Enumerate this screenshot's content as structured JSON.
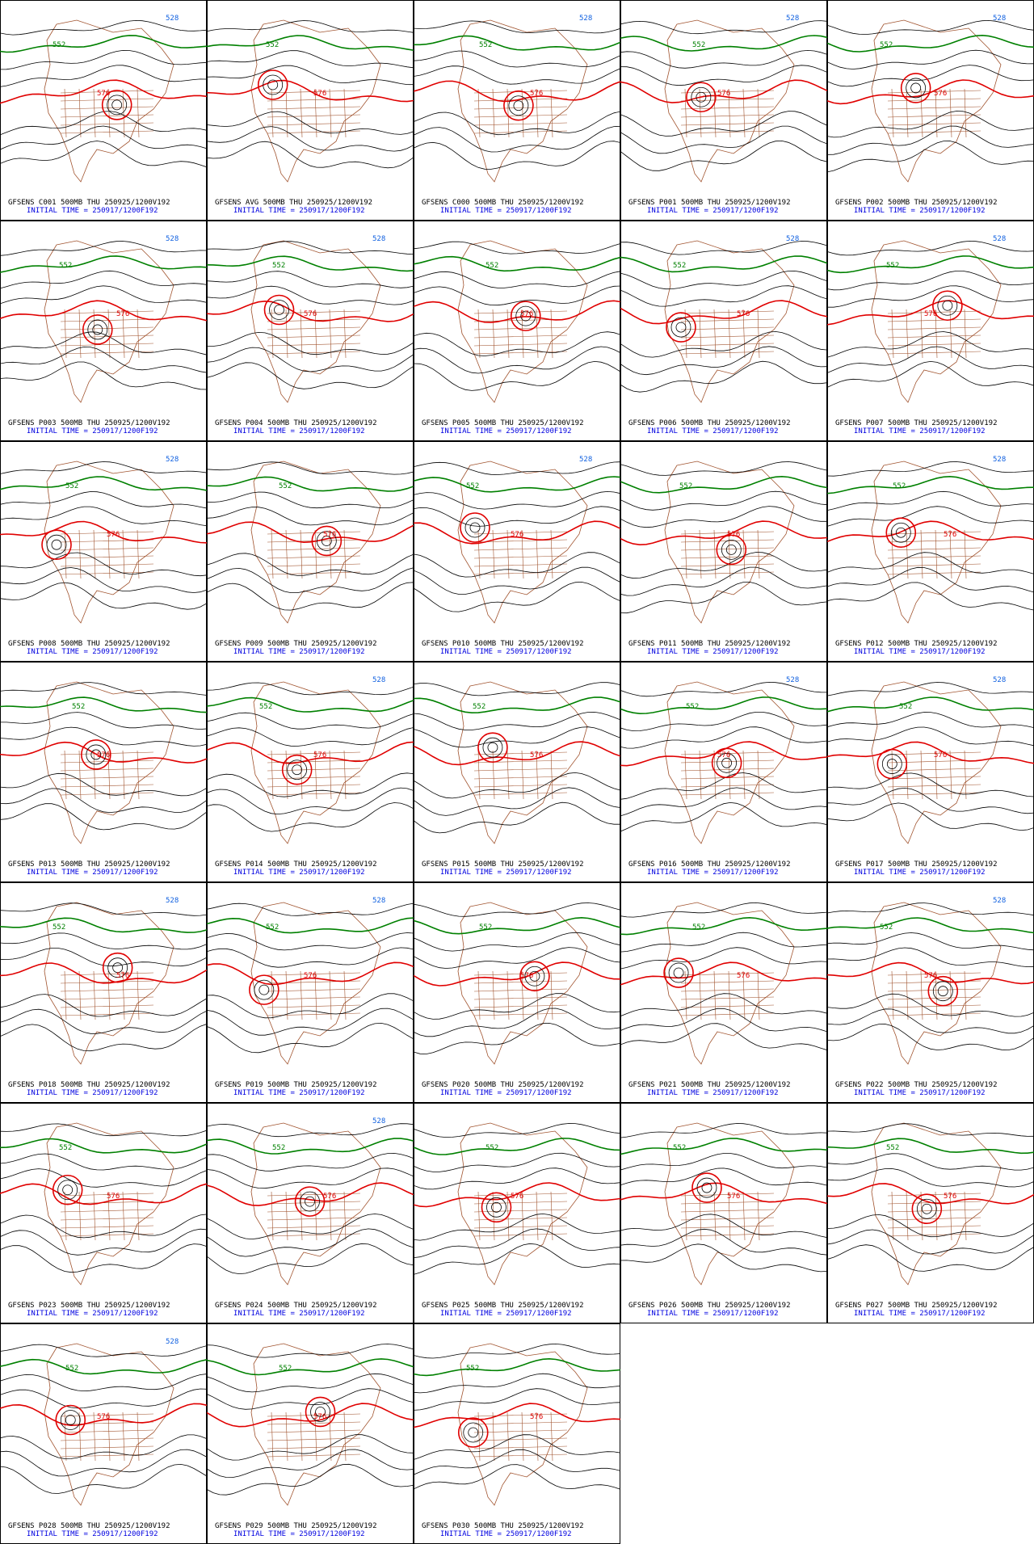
{
  "panels": [
    {
      "line1": "GFSENS C001 500MB THU 250925/1200V192",
      "line2": "INITIAL TIME = 250917/1200F192",
      "contour_labels": [
        {
          "text": "552",
          "color": "#008000"
        },
        {
          "text": "576",
          "color": "#e00000"
        },
        {
          "text": "528",
          "color": "#1060e0"
        }
      ]
    },
    {
      "line1": "GFSENS AVG 500MB THU 250925/1200V192",
      "line2": "INITIAL TIME = 250917/1200F192",
      "contour_labels": [
        {
          "text": "552",
          "color": "#008000"
        },
        {
          "text": "576",
          "color": "#e00000"
        }
      ]
    },
    {
      "line1": "GFSENS C000 500MB THU 250925/1200V192",
      "line2": "INITIAL TIME = 250917/1200F192",
      "contour_labels": [
        {
          "text": "552",
          "color": "#008000"
        },
        {
          "text": "576",
          "color": "#e00000"
        },
        {
          "text": "528",
          "color": "#1060e0"
        }
      ]
    },
    {
      "line1": "GFSENS P001 500MB THU 250925/1200V192",
      "line2": "INITIAL TIME = 250917/1200F192",
      "contour_labels": [
        {
          "text": "552",
          "color": "#008000"
        },
        {
          "text": "576",
          "color": "#e00000"
        },
        {
          "text": "528",
          "color": "#1060e0"
        }
      ]
    },
    {
      "line1": "GFSENS P002 500MB THU 250925/1200V192",
      "line2": "INITIAL TIME = 250917/1200F192",
      "contour_labels": [
        {
          "text": "552",
          "color": "#008000"
        },
        {
          "text": "576",
          "color": "#e00000"
        },
        {
          "text": "528",
          "color": "#1060e0"
        }
      ]
    },
    {
      "line1": "GFSENS P003 500MB THU 250925/1200V192",
      "line2": "INITIAL TIME = 250917/1200F192",
      "contour_labels": [
        {
          "text": "552",
          "color": "#008000"
        },
        {
          "text": "576",
          "color": "#e00000"
        },
        {
          "text": "528",
          "color": "#1060e0"
        }
      ]
    },
    {
      "line1": "GFSENS P004 500MB THU 250925/1200V192",
      "line2": "INITIAL TIME = 250917/1200F192",
      "contour_labels": [
        {
          "text": "552",
          "color": "#008000"
        },
        {
          "text": "576",
          "color": "#e00000"
        },
        {
          "text": "528",
          "color": "#1060e0"
        }
      ]
    },
    {
      "line1": "GFSENS P005 500MB THU 250925/1200V192",
      "line2": "INITIAL TIME = 250917/1200F192",
      "contour_labels": [
        {
          "text": "552",
          "color": "#008000"
        },
        {
          "text": "576",
          "color": "#e00000"
        }
      ]
    },
    {
      "line1": "GFSENS P006 500MB THU 250925/1200V192",
      "line2": "INITIAL TIME = 250917/1200F192",
      "contour_labels": [
        {
          "text": "552",
          "color": "#008000"
        },
        {
          "text": "576",
          "color": "#e00000"
        },
        {
          "text": "528",
          "color": "#1060e0"
        }
      ]
    },
    {
      "line1": "GFSENS P007 500MB THU 250925/1200V192",
      "line2": "INITIAL TIME = 250917/1200F192",
      "contour_labels": [
        {
          "text": "552",
          "color": "#008000"
        },
        {
          "text": "576",
          "color": "#e00000"
        },
        {
          "text": "528",
          "color": "#1060e0"
        }
      ]
    },
    {
      "line1": "GFSENS P008 500MB THU 250925/1200V192",
      "line2": "INITIAL TIME = 250917/1200F192",
      "contour_labels": [
        {
          "text": "552",
          "color": "#008000"
        },
        {
          "text": "576",
          "color": "#e00000"
        },
        {
          "text": "528",
          "color": "#1060e0"
        }
      ]
    },
    {
      "line1": "GFSENS P009 500MB THU 250925/1200V192",
      "line2": "INITIAL TIME = 250917/1200F192",
      "contour_labels": [
        {
          "text": "552",
          "color": "#008000"
        },
        {
          "text": "576",
          "color": "#e00000"
        }
      ]
    },
    {
      "line1": "GFSENS P010 500MB THU 250925/1200V192",
      "line2": "INITIAL TIME = 250917/1200F192",
      "contour_labels": [
        {
          "text": "552",
          "color": "#008000"
        },
        {
          "text": "576",
          "color": "#e00000"
        },
        {
          "text": "528",
          "color": "#1060e0"
        }
      ]
    },
    {
      "line1": "GFSENS P011 500MB THU 250925/1200V192",
      "line2": "INITIAL TIME = 250917/1200F192",
      "contour_labels": [
        {
          "text": "552",
          "color": "#008000"
        },
        {
          "text": "576",
          "color": "#e00000"
        }
      ]
    },
    {
      "line1": "GFSENS P012 500MB THU 250925/1200V192",
      "line2": "INITIAL TIME = 250917/1200F192",
      "contour_labels": [
        {
          "text": "552",
          "color": "#008000"
        },
        {
          "text": "576",
          "color": "#e00000"
        },
        {
          "text": "528",
          "color": "#1060e0"
        }
      ]
    },
    {
      "line1": "GFSENS P013 500MB THU 250925/1200V192",
      "line2": "INITIAL TIME = 250917/1200F192",
      "contour_labels": [
        {
          "text": "552",
          "color": "#008000"
        },
        {
          "text": "576",
          "color": "#e00000"
        }
      ]
    },
    {
      "line1": "GFSENS P014 500MB THU 250925/1200V192",
      "line2": "INITIAL TIME = 250917/1200F192",
      "contour_labels": [
        {
          "text": "552",
          "color": "#008000"
        },
        {
          "text": "576",
          "color": "#e00000"
        },
        {
          "text": "528",
          "color": "#1060e0"
        }
      ]
    },
    {
      "line1": "GFSENS P015 500MB THU 250925/1200V192",
      "line2": "INITIAL TIME = 250917/1200F192",
      "contour_labels": [
        {
          "text": "552",
          "color": "#008000"
        },
        {
          "text": "576",
          "color": "#e00000"
        }
      ]
    },
    {
      "line1": "GFSENS P016 500MB THU 250925/1200V192",
      "line2": "INITIAL TIME = 250917/1200F192",
      "contour_labels": [
        {
          "text": "552",
          "color": "#008000"
        },
        {
          "text": "576",
          "color": "#e00000"
        },
        {
          "text": "528",
          "color": "#1060e0"
        }
      ]
    },
    {
      "line1": "GFSENS P017 500MB THU 250925/1200V192",
      "line2": "INITIAL TIME = 250917/1200F192",
      "contour_labels": [
        {
          "text": "552",
          "color": "#008000"
        },
        {
          "text": "576",
          "color": "#e00000"
        },
        {
          "text": "528",
          "color": "#1060e0"
        }
      ]
    },
    {
      "line1": "GFSENS P018 500MB THU 250925/1200V192",
      "line2": "INITIAL TIME = 250917/1200F192",
      "contour_labels": [
        {
          "text": "552",
          "color": "#008000"
        },
        {
          "text": "576",
          "color": "#e00000"
        },
        {
          "text": "528",
          "color": "#1060e0"
        }
      ]
    },
    {
      "line1": "GFSENS P019 500MB THU 250925/1200V192",
      "line2": "INITIAL TIME = 250917/1200F192",
      "contour_labels": [
        {
          "text": "552",
          "color": "#008000"
        },
        {
          "text": "576",
          "color": "#e00000"
        },
        {
          "text": "528",
          "color": "#1060e0"
        }
      ]
    },
    {
      "line1": "GFSENS P020 500MB THU 250925/1200V192",
      "line2": "INITIAL TIME = 250917/1200F192",
      "contour_labels": [
        {
          "text": "552",
          "color": "#008000"
        },
        {
          "text": "576",
          "color": "#e00000"
        }
      ]
    },
    {
      "line1": "GFSENS P021 500MB THU 250925/1200V192",
      "line2": "INITIAL TIME = 250917/1200F192",
      "contour_labels": [
        {
          "text": "552",
          "color": "#008000"
        },
        {
          "text": "576",
          "color": "#e00000"
        }
      ]
    },
    {
      "line1": "GFSENS P022 500MB THU 250925/1200V192",
      "line2": "INITIAL TIME = 250917/1200F192",
      "contour_labels": [
        {
          "text": "552",
          "color": "#008000"
        },
        {
          "text": "576",
          "color": "#e00000"
        },
        {
          "text": "528",
          "color": "#1060e0"
        }
      ]
    },
    {
      "line1": "GFSENS P023 500MB THU 250925/1200V192",
      "line2": "INITIAL TIME = 250917/1200F192",
      "contour_labels": [
        {
          "text": "552",
          "color": "#008000"
        },
        {
          "text": "576",
          "color": "#e00000"
        }
      ]
    },
    {
      "line1": "GFSENS P024 500MB THU 250925/1200V192",
      "line2": "INITIAL TIME = 250917/1200F192",
      "contour_labels": [
        {
          "text": "552",
          "color": "#008000"
        },
        {
          "text": "576",
          "color": "#e00000"
        },
        {
          "text": "528",
          "color": "#1060e0"
        }
      ]
    },
    {
      "line1": "GFSENS P025 500MB THU 250925/1200V192",
      "line2": "INITIAL TIME = 250917/1200F192",
      "contour_labels": [
        {
          "text": "552",
          "color": "#008000"
        },
        {
          "text": "576",
          "color": "#e00000"
        }
      ]
    },
    {
      "line1": "GFSENS P026 500MB THU 250925/1200V192",
      "line2": "INITIAL TIME = 250917/1200F192",
      "contour_labels": [
        {
          "text": "552",
          "color": "#008000"
        },
        {
          "text": "576",
          "color": "#e00000"
        }
      ]
    },
    {
      "line1": "GFSENS P027 500MB THU 250925/1200V192",
      "line2": "INITIAL TIME = 250917/1200F192",
      "contour_labels": [
        {
          "text": "552",
          "color": "#008000"
        },
        {
          "text": "576",
          "color": "#e00000"
        }
      ]
    },
    {
      "line1": "GFSENS P028 500MB THU 250925/1200V192",
      "line2": "INITIAL TIME = 250917/1200F192",
      "contour_labels": [
        {
          "text": "552",
          "color": "#008000"
        },
        {
          "text": "576",
          "color": "#e00000"
        },
        {
          "text": "528",
          "color": "#1060e0"
        }
      ]
    },
    {
      "line1": "GFSENS P029 500MB THU 250925/1200V192",
      "line2": "INITIAL TIME = 250917/1200F192",
      "contour_labels": [
        {
          "text": "552",
          "color": "#008000"
        },
        {
          "text": "576",
          "color": "#e00000"
        }
      ]
    },
    {
      "line1": "GFSENS P030 500MB THU 250925/1200V192",
      "line2": "INITIAL TIME = 250917/1200F192",
      "contour_labels": [
        {
          "text": "552",
          "color": "#008000"
        },
        {
          "text": "576",
          "color": "#e00000"
        }
      ]
    }
  ]
}
